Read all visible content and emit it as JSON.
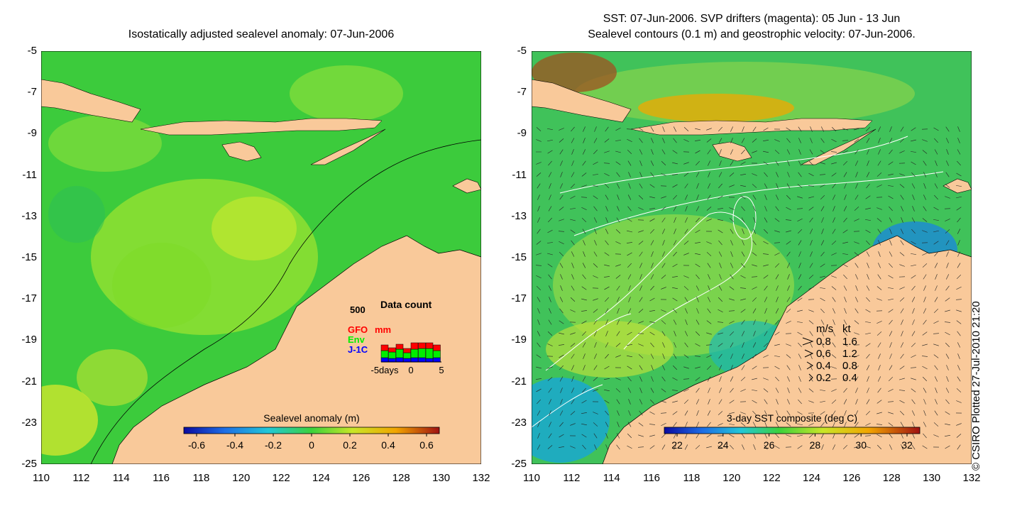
{
  "left_panel": {
    "title": "Isostatically adjusted sealevel anomaly: 07-Jun-2006",
    "colorbar": {
      "label": "Sealevel anomaly (m)",
      "ticks": [
        "-0.6",
        "-0.4",
        "-0.2",
        "0",
        "0.2",
        "0.4",
        "0.6"
      ]
    },
    "data_count": {
      "title": "Data count",
      "ymax_label": "500",
      "legend": [
        {
          "label": "GFO",
          "color": "#ff0000"
        },
        {
          "label": "Env",
          "color": "#00ee00"
        },
        {
          "label": "J-1C",
          "color": "#0000ff"
        }
      ],
      "unit_label": "mm",
      "x_ticks": [
        "-5days",
        "0",
        "5"
      ]
    }
  },
  "right_panel": {
    "title_line1": "SST: 07-Jun-2006. SVP drifters (magenta): 05 Jun - 13 Jun",
    "title_line2": "Sealevel contours (0.1 m) and geostrophic velocity: 07-Jun-2006.",
    "colorbar": {
      "label": "3-day SST composite (deg C)",
      "ticks": [
        "22",
        "24",
        "26",
        "28",
        "30",
        "32"
      ]
    },
    "velocity_legend": {
      "header_ms": "m/s",
      "header_kt": "kt",
      "rows": [
        {
          "ms": "0.8",
          "kt": "1.6"
        },
        {
          "ms": "0.6",
          "kt": "1.2"
        },
        {
          "ms": "0.4",
          "kt": "0.8"
        },
        {
          "ms": "0.2",
          "kt": "0.4"
        }
      ]
    }
  },
  "axes": {
    "y_ticks": [
      "-5",
      "-7",
      "-9",
      "-11",
      "-13",
      "-15",
      "-17",
      "-19",
      "-21",
      "-23",
      "-25"
    ],
    "x_ticks": [
      "110",
      "112",
      "114",
      "116",
      "118",
      "120",
      "122",
      "124",
      "126",
      "128",
      "130",
      "132"
    ]
  },
  "copyright": "© CSIRO Plotted 27-Jul-2010 21:20",
  "colors": {
    "land": "#f9c99a",
    "ocean_sla": "#33cc33",
    "ocean_sst": "#3ec85a"
  }
}
